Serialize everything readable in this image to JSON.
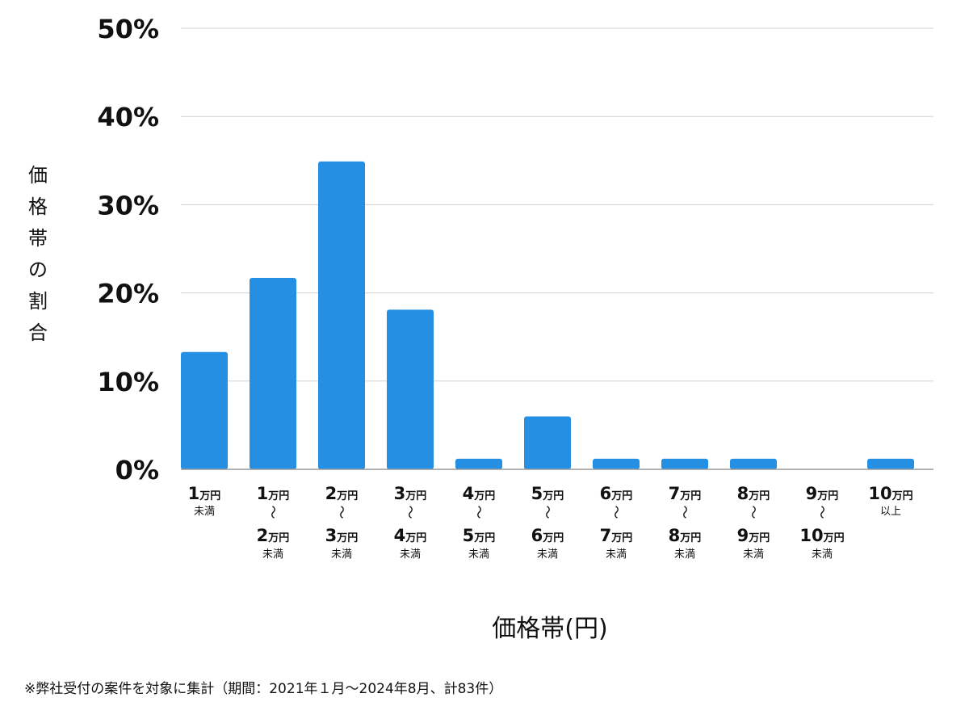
{
  "chart_data": {
    "type": "bar",
    "categories": [
      {
        "top_num": "1",
        "top_unit": "万円",
        "bottom_num": "",
        "bottom_unit": "",
        "suffix": "未満"
      },
      {
        "top_num": "1",
        "top_unit": "万円",
        "bottom_num": "2",
        "bottom_unit": "万円",
        "suffix": "未満"
      },
      {
        "top_num": "2",
        "top_unit": "万円",
        "bottom_num": "3",
        "bottom_unit": "万円",
        "suffix": "未満"
      },
      {
        "top_num": "3",
        "top_unit": "万円",
        "bottom_num": "4",
        "bottom_unit": "万円",
        "suffix": "未満"
      },
      {
        "top_num": "4",
        "top_unit": "万円",
        "bottom_num": "5",
        "bottom_unit": "万円",
        "suffix": "未満"
      },
      {
        "top_num": "5",
        "top_unit": "万円",
        "bottom_num": "6",
        "bottom_unit": "万円",
        "suffix": "未満"
      },
      {
        "top_num": "6",
        "top_unit": "万円",
        "bottom_num": "7",
        "bottom_unit": "万円",
        "suffix": "未満"
      },
      {
        "top_num": "7",
        "top_unit": "万円",
        "bottom_num": "8",
        "bottom_unit": "万円",
        "suffix": "未満"
      },
      {
        "top_num": "8",
        "top_unit": "万円",
        "bottom_num": "9",
        "bottom_unit": "万円",
        "suffix": "未満"
      },
      {
        "top_num": "9",
        "top_unit": "万円",
        "bottom_num": "10",
        "bottom_unit": "万円",
        "suffix": "未満"
      },
      {
        "top_num": "10",
        "top_unit": "万円",
        "bottom_num": "",
        "bottom_unit": "",
        "suffix": "以上"
      }
    ],
    "values": [
      13.3,
      21.7,
      34.9,
      18.1,
      1.2,
      6.0,
      1.2,
      1.2,
      1.2,
      0,
      1.2
    ],
    "ylim": [
      0,
      50
    ],
    "yticks": [
      0,
      10,
      20,
      30,
      40,
      50
    ],
    "ytick_labels": [
      "0%",
      "10%",
      "20%",
      "30%",
      "40%",
      "50%"
    ],
    "range_separator": "〜",
    "ylabel": "価格帯の割合",
    "xlabel": "価格帯(円)",
    "bar_color": "#2590e3",
    "grid_color": "#d0d0d0",
    "grid": true
  },
  "footnote": "※弊社受付の案件を対象に集計（期間：2021年１月〜2024年8月、計83件）"
}
